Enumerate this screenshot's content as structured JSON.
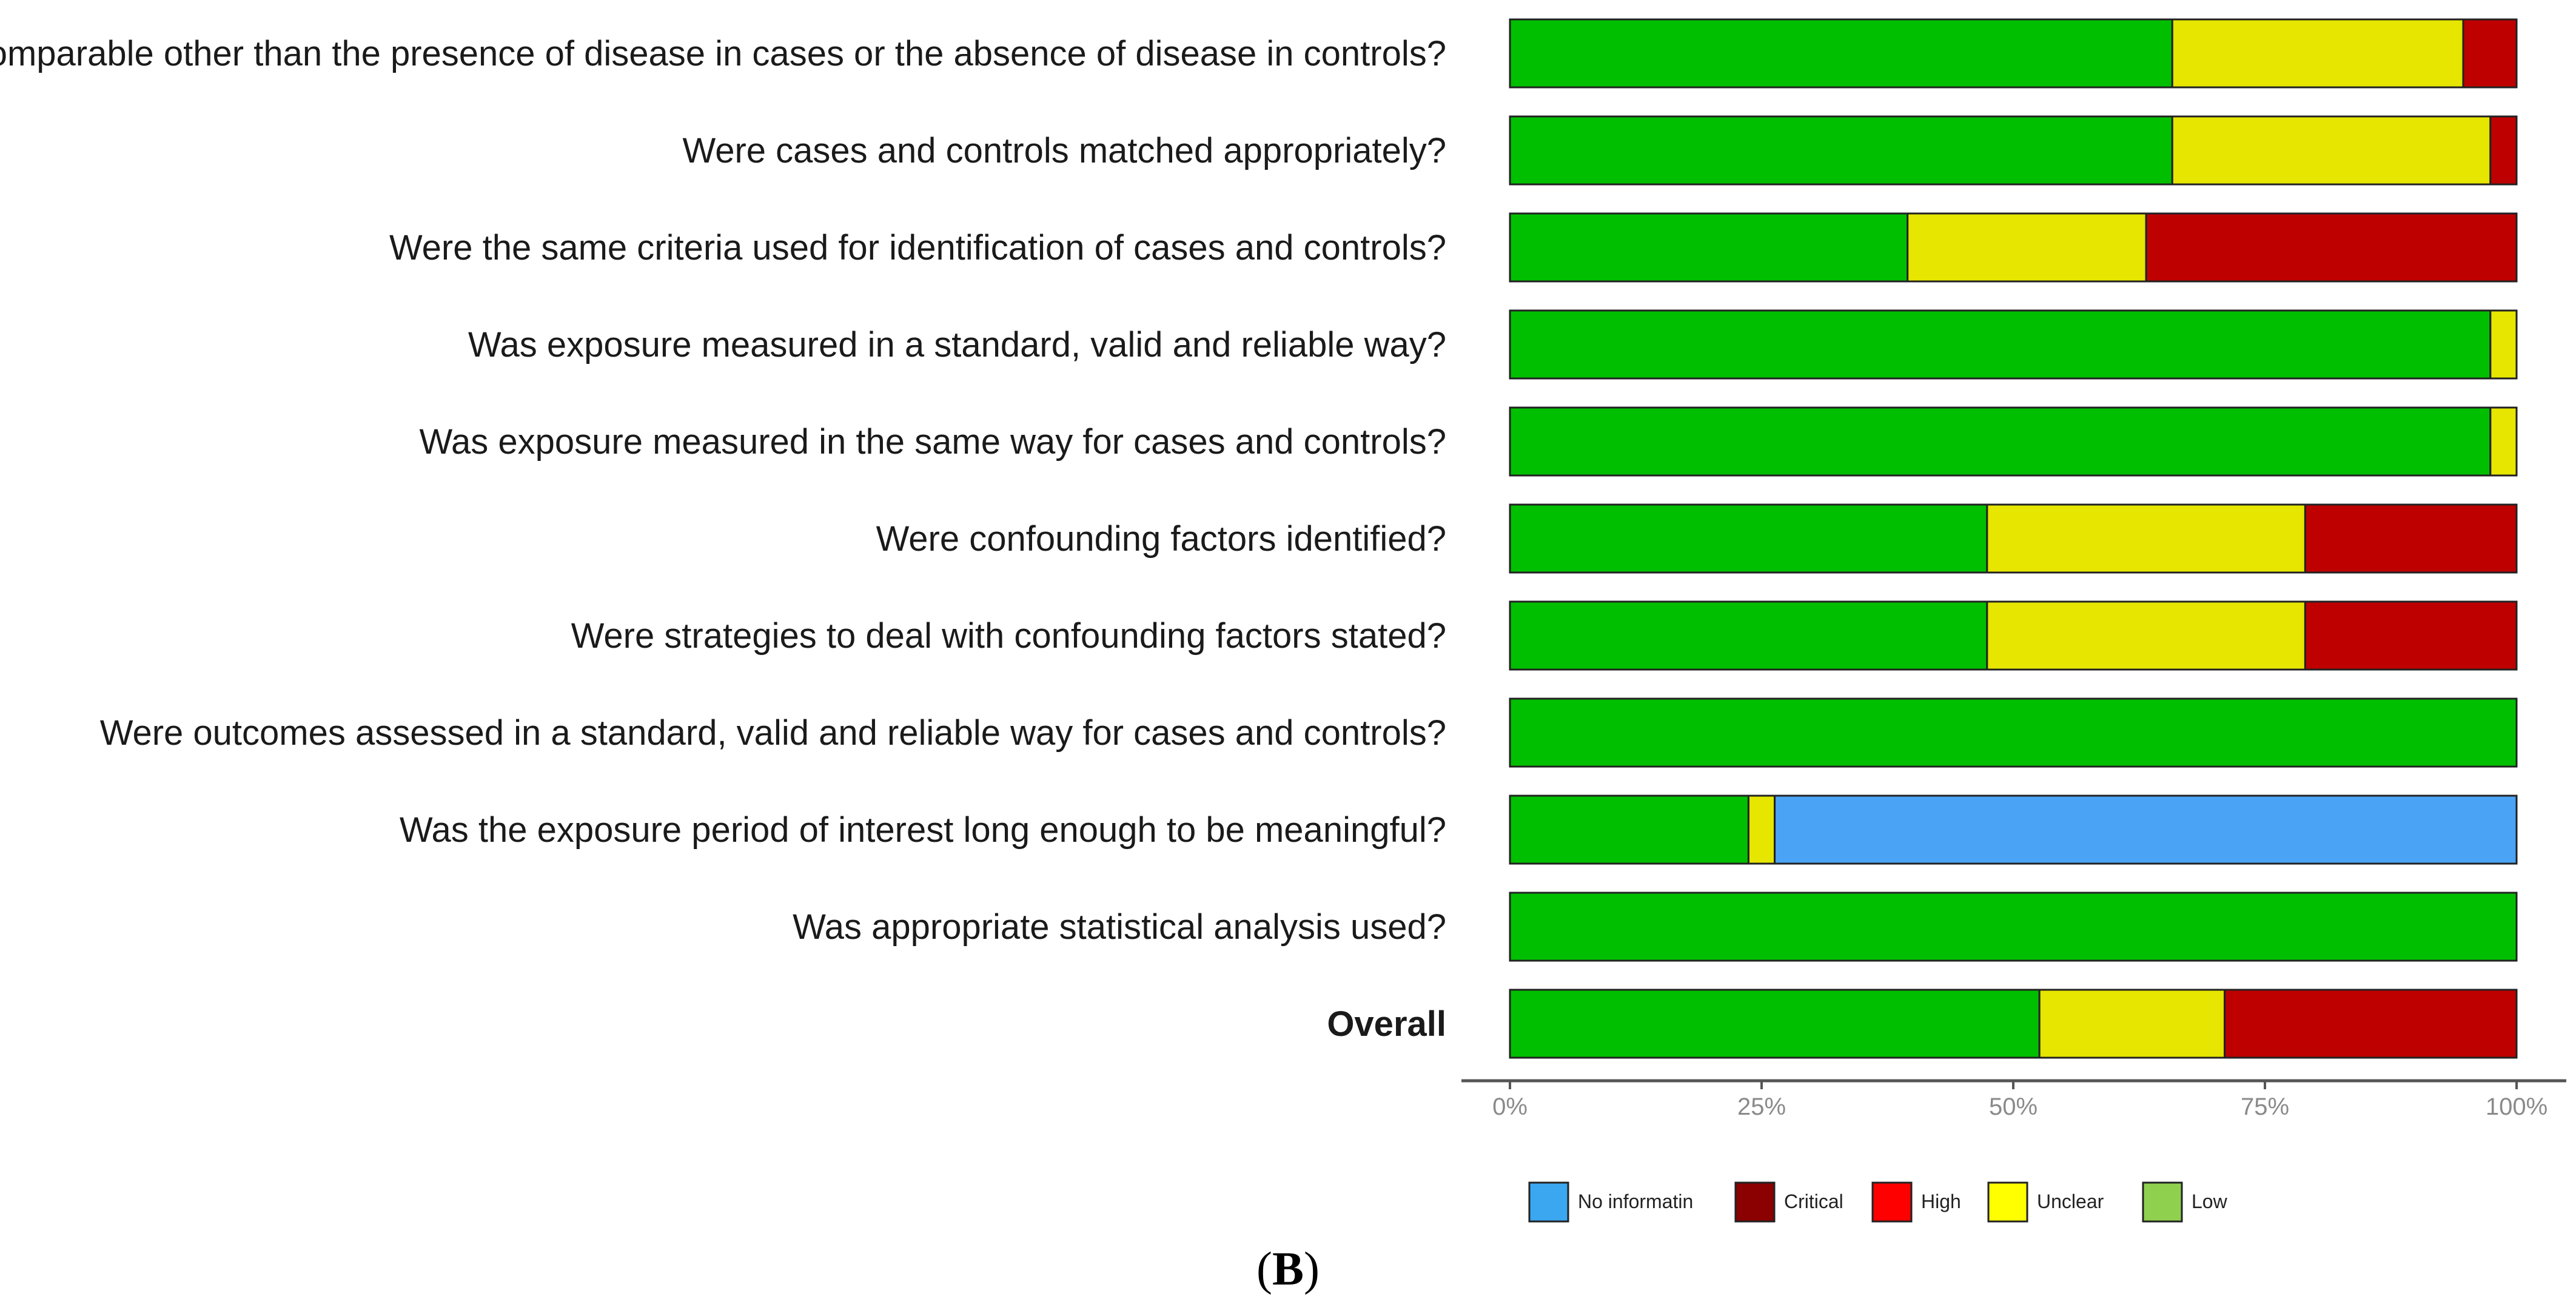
{
  "chart_data": {
    "type": "bar",
    "orientation": "horizontal",
    "stacked": true,
    "categories": [
      "Were the groups comparable other than the presence of disease in cases or the absence of disease in controls?",
      "Were cases and controls matched appropriately?",
      "Were the same criteria used for identification of cases and controls?",
      "Was exposure measured in a standard, valid and reliable way?",
      "Was exposure measured in the same way for cases and controls?",
      "Were confounding factors identified?",
      "Were strategies to deal with confounding factors stated?",
      "Were outcomes assessed in a standard, valid and reliable way for cases and controls?",
      "Was the exposure period of interest long enough to be meaningful?",
      "Was appropriate statistical analysis used?",
      "Overall"
    ],
    "bold_categories": [
      "Overall"
    ],
    "series": [
      {
        "color": "#00bf00",
        "values": [
          65.8,
          65.8,
          39.5,
          97.4,
          97.4,
          47.4,
          47.4,
          100,
          23.7,
          100,
          52.6
        ]
      },
      {
        "color": "#e6e600",
        "values": [
          28.9,
          31.6,
          23.7,
          2.6,
          2.6,
          31.6,
          31.6,
          0,
          2.6,
          0,
          18.4
        ]
      },
      {
        "color": "#bf0000",
        "values": [
          5.3,
          2.6,
          36.8,
          0,
          0,
          21.0,
          21.0,
          0,
          0,
          0,
          29.0
        ]
      },
      {
        "color": "#4aa3f5",
        "values": [
          0,
          0,
          0,
          0,
          0,
          0,
          0,
          0,
          73.7,
          0,
          0
        ]
      }
    ],
    "x_ticks": [
      "0%",
      "25%",
      "50%",
      "75%",
      "100%"
    ],
    "xlim": [
      0,
      100
    ],
    "grid": false,
    "legend": {
      "position": "bottom",
      "items": [
        {
          "label": "No informatin",
          "color": "#3ba7f0"
        },
        {
          "label": "Critical",
          "color": "#8b0000"
        },
        {
          "label": "High",
          "color": "#ff0000"
        },
        {
          "label": "Unclear",
          "color": "#ffff00"
        },
        {
          "label": "Low",
          "color": "#8fd14f"
        }
      ]
    }
  },
  "panel_label": {
    "open": "(",
    "letter": "B",
    "close": ")"
  }
}
